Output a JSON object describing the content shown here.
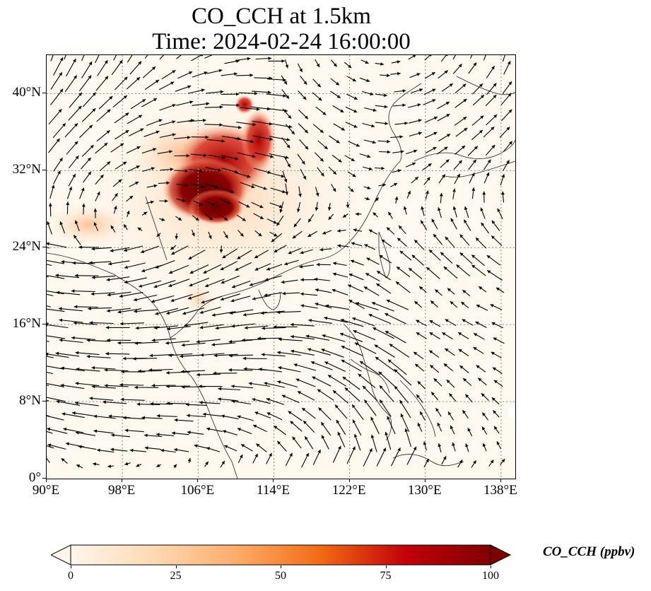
{
  "title": {
    "line1": "CO_CCH at 1.5km",
    "line2": "Time: 2024-02-24 16:00:00"
  },
  "map": {
    "lon_range": [
      90,
      139.5
    ],
    "lat_range": [
      0,
      44
    ],
    "y_ticks": [
      {
        "value": 0,
        "label": "0°"
      },
      {
        "value": 8,
        "label": "8°N"
      },
      {
        "value": 16,
        "label": "16°N"
      },
      {
        "value": 24,
        "label": "24°N"
      },
      {
        "value": 32,
        "label": "32°N"
      },
      {
        "value": 40,
        "label": "40°N"
      }
    ],
    "x_ticks": [
      {
        "value": 90,
        "label": "90°E"
      },
      {
        "value": 98,
        "label": "98°E"
      },
      {
        "value": 106,
        "label": "106°E"
      },
      {
        "value": 114,
        "label": "114°E"
      },
      {
        "value": 122,
        "label": "122°E"
      },
      {
        "value": 130,
        "label": "130°E"
      },
      {
        "value": 138,
        "label": "138°E"
      }
    ],
    "gridlines": "dotted",
    "background_color": "#fff8ee"
  },
  "colorbar": {
    "label": "CO_CCH (ppbv)",
    "min": 0,
    "max": 100,
    "ticks": [
      {
        "value": 0,
        "label": "0"
      },
      {
        "value": 25,
        "label": "25"
      },
      {
        "value": 50,
        "label": "50"
      },
      {
        "value": 75,
        "label": "75"
      },
      {
        "value": 100,
        "label": "100"
      }
    ],
    "extend": "both",
    "colormap": [
      "#fff5eb",
      "#fdd9b2",
      "#fdab67",
      "#f16913",
      "#c2000a",
      "#7f0000"
    ]
  }
}
